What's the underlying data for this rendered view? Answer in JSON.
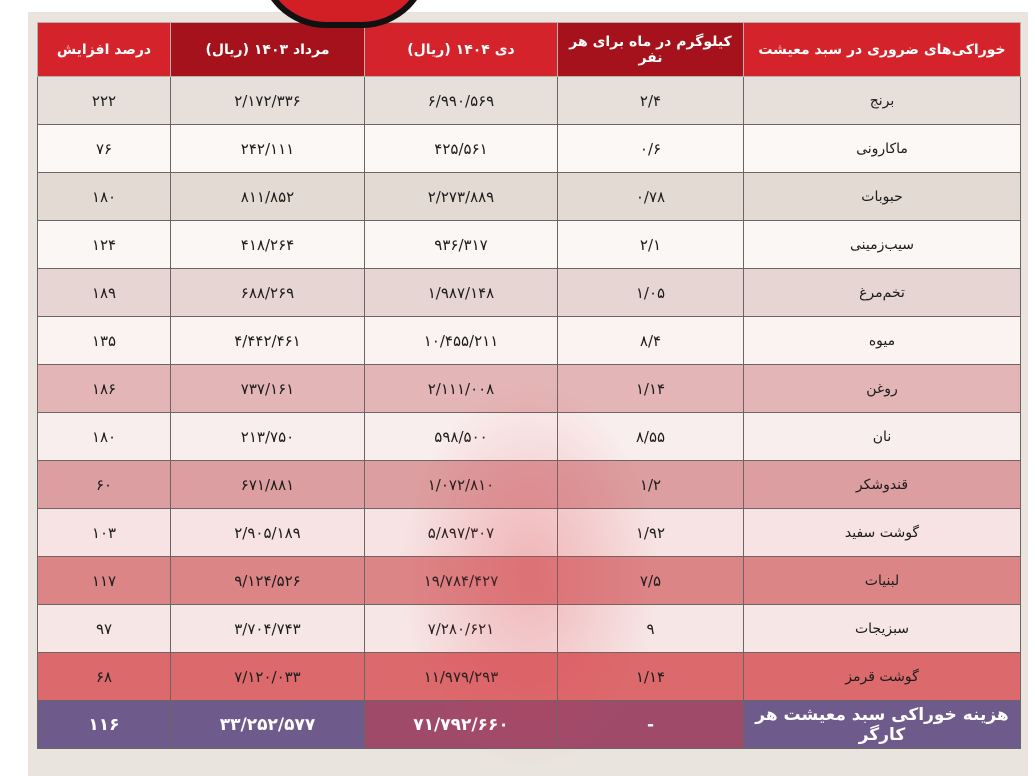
{
  "table": {
    "headers": [
      "خوراکی‌های ضروری در سبد معیشت",
      "کیلوگرم در ماه برای هر نفر",
      "دی ۱۴۰۴ (ریال)",
      "مرداد ۱۴۰۳ (ریال)",
      "درصد افزایش"
    ],
    "rows": [
      [
        "برنج",
        "۲/۴",
        "۶/۹۹۰/۵۶۹",
        "۲/۱۷۲/۳۳۶",
        "۲۲۲"
      ],
      [
        "ماکارونی",
        "۰/۶",
        "۴۲۵/۵۶۱",
        "۲۴۲/۱۱۱",
        "۷۶"
      ],
      [
        "حبوبات",
        "۰/۷۸",
        "۲/۲۷۳/۸۸۹",
        "۸۱۱/۸۵۲",
        "۱۸۰"
      ],
      [
        "سیب‌زمینی",
        "۲/۱",
        "۹۳۶/۳۱۷",
        "۴۱۸/۲۶۴",
        "۱۲۴"
      ],
      [
        "تخم‌مرغ",
        "۱/۰۵",
        "۱/۹۸۷/۱۴۸",
        "۶۸۸/۲۶۹",
        "۱۸۹"
      ],
      [
        "میوه",
        "۸/۴",
        "۱۰/۴۵۵/۲۱۱",
        "۴/۴۴۲/۴۶۱",
        "۱۳۵"
      ],
      [
        "روغن",
        "۱/۱۴",
        "۲/۱۱۱/۰۰۸",
        "۷۳۷/۱۶۱",
        "۱۸۶"
      ],
      [
        "نان",
        "۸/۵۵",
        "۵۹۸/۵۰۰",
        "۲۱۳/۷۵۰",
        "۱۸۰"
      ],
      [
        "قندوشکر",
        "۱/۲",
        "۱/۰۷۲/۸۱۰",
        "۶۷۱/۸۸۱",
        "۶۰"
      ],
      [
        "گوشت سفید",
        "۱/۹۲",
        "۵/۸۹۷/۳۰۷",
        "۲/۹۰۵/۱۸۹",
        "۱۰۳"
      ],
      [
        "لبنیات",
        "۷/۵",
        "۱۹/۷۸۴/۴۲۷",
        "۹/۱۲۴/۵۲۶",
        "۱۱۷"
      ],
      [
        "سبزیجات",
        "۹",
        "۷/۲۸۰/۶۲۱",
        "۳/۷۰۴/۷۴۳",
        "۹۷"
      ],
      [
        "گوشت قرمز",
        "۱/۱۴",
        "۱۱/۹۷۹/۲۹۳",
        "۷/۱۲۰/۰۳۳",
        "۶۸"
      ]
    ],
    "total": [
      "هزینه خوراکی سبد معیشت هر کارگر",
      "-",
      "۷۱/۷۹۲/۶۶۰",
      "۳۳/۲۵۲/۵۷۷",
      "۱۱۶"
    ]
  },
  "colors": {
    "header_red": "#d5232b",
    "header_dark_red": "#a5121b",
    "total_row": "#6f5a8c"
  }
}
